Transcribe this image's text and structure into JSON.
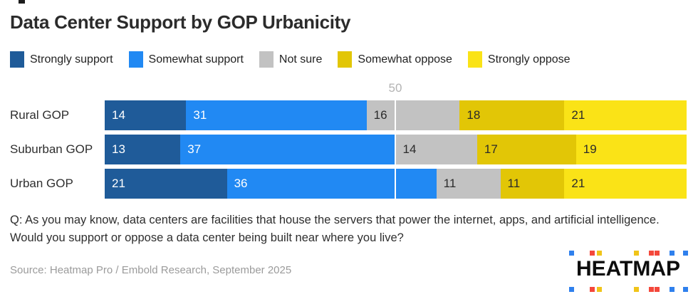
{
  "title": "Data Center Support by GOP Urbanicity",
  "chart_data": {
    "type": "bar",
    "subtype": "horizontal-stacked",
    "categories": [
      "Rural GOP",
      "Suburban GOP",
      "Urban GOP"
    ],
    "series": [
      {
        "name": "Strongly support",
        "color": "#1f5b99",
        "label_color": "#ffffff",
        "values": [
          14,
          13,
          21
        ]
      },
      {
        "name": "Somewhat support",
        "color": "#2189f3",
        "label_color": "#ffffff",
        "values": [
          31,
          37,
          36
        ]
      },
      {
        "name": "Not sure",
        "color": "#c2c2c2",
        "label_color": "#2b2b2b",
        "values": [
          16,
          14,
          11
        ]
      },
      {
        "name": "Somewhat oppose",
        "color": "#e2c606",
        "label_color": "#2b2b2b",
        "values": [
          18,
          17,
          11
        ]
      },
      {
        "name": "Strongly oppose",
        "color": "#fae317",
        "label_color": "#2b2b2b",
        "values": [
          21,
          19,
          21
        ]
      }
    ],
    "xlim": [
      0,
      100
    ],
    "gridline_value": 50,
    "gridline_label": "50",
    "legend_position": "top",
    "data_labels": true,
    "units": "percent"
  },
  "question": "Q: As you may know, data centers are facilities that house the servers that power the internet, apps, and artificial intelligence. Would you support or oppose a data center being built near where you live?",
  "source": "Source: Heatmap Pro / Embold Research, September 2025",
  "logo": {
    "text": "HEATMAP",
    "dot_size": 7,
    "dot_positions": [
      2,
      31,
      41,
      93,
      114,
      122,
      143,
      162
    ],
    "dot_colors": [
      "#2f80ed",
      "#f4483b",
      "#f0c419",
      "#f0c419",
      "#f4483b",
      "#f4483b",
      "#2f80ed",
      "#2f80ed"
    ]
  }
}
